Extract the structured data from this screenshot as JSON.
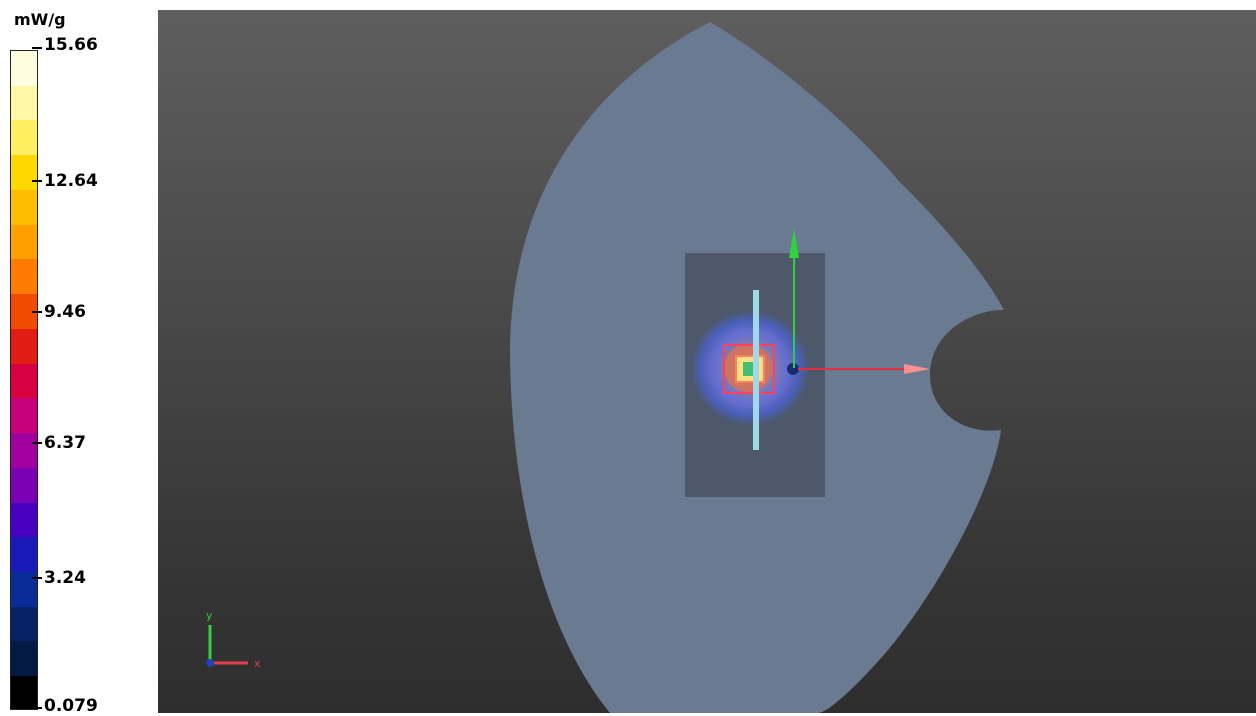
{
  "legend": {
    "unit": "mW/g",
    "ticks": [
      {
        "label": "15.66",
        "value": 15.66
      },
      {
        "label": "12.64",
        "value": 12.64
      },
      {
        "label": "9.46",
        "value": 9.46
      },
      {
        "label": "6.37",
        "value": 6.37
      },
      {
        "label": "3.24",
        "value": 3.24
      },
      {
        "label": "0.079",
        "value": 0.079
      }
    ],
    "colors": [
      "#fffde0",
      "#fff6a8",
      "#ffee60",
      "#ffd800",
      "#ffbe00",
      "#ffa000",
      "#ff7a00",
      "#f24a00",
      "#e01c14",
      "#d80040",
      "#c8007a",
      "#a0009e",
      "#7a00b4",
      "#4a00c0",
      "#1a1ab8",
      "#0a2c96",
      "#082268",
      "#041a44",
      "#000000"
    ]
  },
  "axes": {
    "y_label": "y",
    "x_label": "x"
  },
  "colors": {
    "phantom": "#6a7a91",
    "dut": "#4d586a",
    "bg_top": "#5e5e5e",
    "bg_bottom": "#2e2e2e"
  }
}
